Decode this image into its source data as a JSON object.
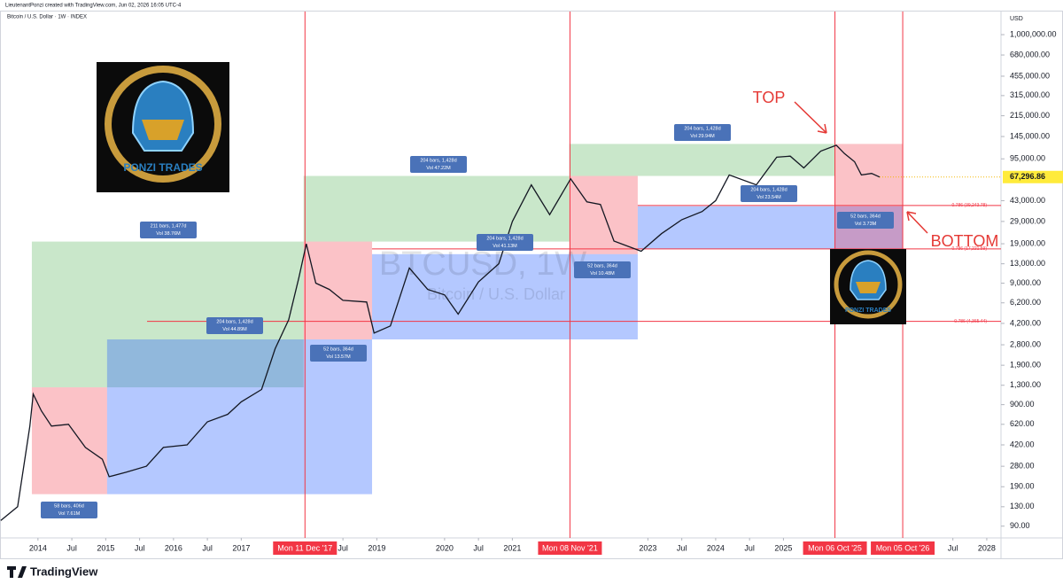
{
  "header": {
    "line1": "LieutenantPonzi created with TradingView.com, Jun 02, 2026 16:05 UTC-4",
    "line2": "Bitcoin / U.S. Dollar · 1W · INDEX"
  },
  "chart_data": {
    "type": "line",
    "log_scale": true,
    "color": "#131722",
    "watermark": "BTCUSD, 1W",
    "watermark_sub": "Bitcoin / U.S. Dollar",
    "y_axis_unit": "USD",
    "x": [
      2013.45,
      2013.7,
      2013.88,
      2013.93,
      2014.05,
      2014.2,
      2014.45,
      2014.7,
      2014.95,
      2015.05,
      2015.3,
      2015.6,
      2015.85,
      2016.2,
      2016.5,
      2016.8,
      2017.0,
      2017.3,
      2017.5,
      2017.7,
      2017.85,
      2017.96,
      2018.1,
      2018.3,
      2018.5,
      2018.85,
      2018.96,
      2019.2,
      2019.48,
      2019.75,
      2020.0,
      2020.2,
      2020.5,
      2020.8,
      2021.0,
      2021.28,
      2021.55,
      2021.86,
      2022.1,
      2022.3,
      2022.5,
      2022.9,
      2023.2,
      2023.5,
      2023.8,
      2024.0,
      2024.2,
      2024.6,
      2024.9,
      2025.1,
      2025.3,
      2025.55,
      2025.78,
      2025.9,
      2026.05,
      2026.15,
      2026.3,
      2026.42
    ],
    "values": [
      100,
      130,
      600,
      1100,
      800,
      600,
      620,
      400,
      320,
      230,
      250,
      280,
      400,
      420,
      650,
      750,
      950,
      1200,
      2600,
      4500,
      10000,
      19000,
      9000,
      8000,
      6500,
      6300,
      3500,
      4000,
      12000,
      8000,
      7200,
      5000,
      9200,
      13000,
      29000,
      58000,
      33000,
      65000,
      42000,
      40000,
      20000,
      16500,
      23000,
      30000,
      35000,
      43000,
      70000,
      58000,
      98000,
      100000,
      80000,
      110000,
      123000,
      105000,
      90000,
      70000,
      72000,
      67296.86
    ],
    "xlim": [
      2013.44,
      2028.21
    ],
    "xticks": [
      2014,
      {
        "value": 2014.5,
        "label": "Jul"
      },
      2015,
      {
        "value": 2015.5,
        "label": "Jul"
      },
      2016,
      {
        "value": 2016.5,
        "label": "Jul"
      },
      2017,
      {
        "value": 2018.5,
        "label": "Jul"
      },
      2019,
      2020,
      {
        "value": 2020.5,
        "label": "Jul"
      },
      2021,
      2023,
      {
        "value": 2023.5,
        "label": "Jul"
      },
      2024,
      {
        "value": 2024.5,
        "label": "Jul"
      },
      2025,
      {
        "value": 2027.5,
        "label": "Jul"
      },
      2028
    ],
    "ylim": [
      72,
      1550000
    ],
    "yticks": [
      {
        "value": 1000000,
        "label": "1,000,000.00"
      },
      {
        "value": 680000,
        "label": "680,000.00"
      },
      {
        "value": 455000,
        "label": "455,000.00"
      },
      {
        "value": 315000,
        "label": "315,000.00"
      },
      {
        "value": 215000,
        "label": "215,000.00"
      },
      {
        "value": 145000,
        "label": "145,000.00"
      },
      {
        "value": 95000,
        "label": "95,000.00"
      },
      {
        "value": 43000,
        "label": "43,000.00"
      },
      {
        "value": 29000,
        "label": "29,000.00"
      },
      {
        "value": 19000,
        "label": "19,000.00"
      },
      {
        "value": 13000,
        "label": "13,000.00"
      },
      {
        "value": 9000,
        "label": "9,000.00"
      },
      {
        "value": 6200,
        "label": "6,200.00"
      },
      {
        "value": 4200,
        "label": "4,200.00"
      },
      {
        "value": 2800,
        "label": "2,800.00"
      },
      {
        "value": 1900,
        "label": "1,900.00"
      },
      {
        "value": 1300,
        "label": "1,300.00"
      },
      {
        "value": 900,
        "label": "900.00"
      },
      {
        "value": 620,
        "label": "620.00"
      },
      {
        "value": 420,
        "label": "420.00"
      },
      {
        "value": 280,
        "label": "280.00"
      },
      {
        "value": 190,
        "label": "190.00"
      },
      {
        "value": 130,
        "label": "130.00"
      },
      {
        "value": 90,
        "label": "90.00"
      }
    ],
    "last_price": {
      "value": 67296.86,
      "label": "67,296.86"
    },
    "markers": [
      {
        "value": 2017.94,
        "label": "Mon 11 Dec '17"
      },
      {
        "value": 2021.85,
        "label": "Mon 08 Nov '21"
      },
      {
        "value": 2025.76,
        "label": "Mon 06 Oct '25"
      },
      {
        "value": 2026.76,
        "label": "Mon 05 Oct '26"
      }
    ],
    "levels": [
      {
        "value": 39243.78,
        "label": "0.786 (39,243.78)",
        "from": 2022.85
      },
      {
        "value": 17221.59,
        "label": "0.786 (17,221.59)",
        "from": 2018.93
      },
      {
        "value": 4365.44,
        "label": "0.786 (4,365.44)",
        "from": 2015.61
      }
    ],
    "boxes": [
      {
        "color": "#f23645",
        "x": [
          2013.91,
          2015.02
        ],
        "y": [
          165,
          1250
        ]
      },
      {
        "color": "#4caf50",
        "x": [
          2013.91,
          2017.92
        ],
        "y": [
          1250,
          19800
        ]
      },
      {
        "color": "#2962ff",
        "x": [
          2015.02,
          2018.93
        ],
        "y": [
          165,
          3100
        ]
      },
      {
        "color": "#f23645",
        "x": [
          2017.92,
          2018.93
        ],
        "y": [
          3100,
          19800
        ]
      },
      {
        "color": "#4caf50",
        "x": [
          2017.92,
          2021.84
        ],
        "y": [
          19800,
          68700
        ]
      },
      {
        "color": "#2962ff",
        "x": [
          2018.93,
          2022.85
        ],
        "y": [
          3100,
          15600
        ]
      },
      {
        "color": "#f23645",
        "x": [
          2021.84,
          2022.85
        ],
        "y": [
          15600,
          68700
        ]
      },
      {
        "color": "#4caf50",
        "x": [
          2021.84,
          2025.76
        ],
        "y": [
          68700,
          126000
        ]
      },
      {
        "color": "#2962ff",
        "x": [
          2022.85,
          2026.76
        ],
        "y": [
          17260,
          38700
        ]
      },
      {
        "color": "#f23645",
        "x": [
          2025.76,
          2026.76
        ],
        "y": [
          17260,
          126000
        ]
      }
    ],
    "box_labels": [
      {
        "lines": [
          "58 bars, 406d",
          "Vol 7.61M"
        ]
      },
      {
        "lines": [
          "211 bars, 1,477d",
          "Vol 38.76M"
        ]
      },
      {
        "lines": [
          "204 bars, 1,428d",
          "Vol 44.89M"
        ]
      },
      {
        "lines": [
          "52 bars, 364d",
          "Vol 13.57M"
        ]
      },
      {
        "lines": [
          "204 bars, 1,428d",
          "Vol 47.22M"
        ]
      },
      {
        "lines": [
          "204 bars, 1,428d",
          "Vol 41.13M"
        ]
      },
      {
        "lines": [
          "52 bars, 364d",
          "Vol 10.48M"
        ]
      },
      {
        "lines": [
          "204 bars, 1,428d",
          "Vol 29.94M"
        ]
      },
      {
        "lines": [
          "204 bars, 1,428d",
          "Vol 23.54M"
        ]
      },
      {
        "lines": [
          "52 bars, 364d",
          "Vol 3.73M"
        ]
      }
    ],
    "annotations": {
      "top": "TOP",
      "bottom": "BOTTOM"
    },
    "logo_text": "PONZI TRADES"
  },
  "footer": {
    "brand": "TradingView"
  }
}
